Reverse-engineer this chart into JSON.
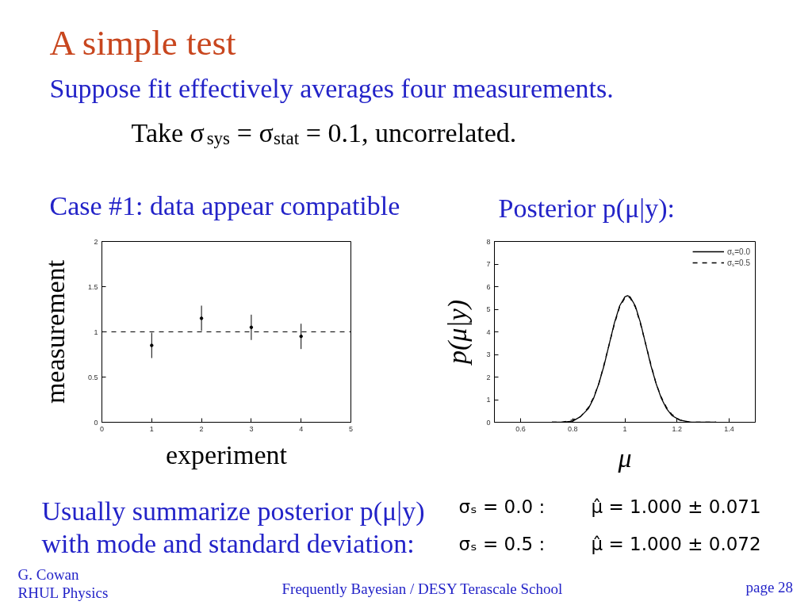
{
  "chart_data": [
    {
      "type": "other",
      "title": "A simple test",
      "subtitle": "Suppose fit effectively averages four measurements.",
      "annotations": [
        "Take σ$_{sys}$ = σ$_{stat}$ = 0.1, uncorrelated.",
        "Usually summarize posterior p(μ|y)",
        "with mode and standard deviation:",
        "σₛ = 0.0 :",
        "μ̂ = 1.000 ± 0.071",
        "σₛ = 0.5 :",
        "μ̂ = 1.000 ± 0.072",
        "G. Cowan",
        "RHUL Physics",
        "Frequently Bayesian / DESY Terascale School",
        "page 28"
      ]
    },
    {
      "type": "scatter",
      "title": "Case #1: data appear compatible",
      "xlabel": "experiment",
      "ylabel": "measurement",
      "x": [
        1,
        2,
        3,
        4
      ],
      "values": [
        0.85,
        1.15,
        1.05,
        0.95
      ],
      "errors": [
        0.14,
        0.14,
        0.14,
        0.14
      ],
      "color": "#000000",
      "marker": "circle",
      "xlim": [
        0,
        5
      ],
      "xticks": [
        0,
        1,
        2,
        3,
        4,
        5
      ],
      "ylim": [
        0,
        2
      ],
      "yticks": [
        0,
        0.5,
        1,
        1.5,
        2
      ],
      "ref_lines": [
        {
          "axis": "y",
          "value": 1,
          "color": "#000000",
          "line_style": "dashed"
        }
      ]
    },
    {
      "type": "line",
      "title": "Posterior p(μ|y):",
      "xlabel": "μ",
      "ylabel": "p(μ|y)",
      "x": [
        0.72,
        0.76,
        0.8,
        0.83,
        0.86,
        0.88,
        0.9,
        0.92,
        0.94,
        0.96,
        0.98,
        1,
        1.01,
        1.02,
        1.04,
        1.06,
        1.08,
        1.1,
        1.12,
        1.14,
        1.16,
        1.18,
        1.21,
        1.25,
        1.3,
        1.35
      ],
      "series": [
        {
          "name": "σₛ=0.0",
          "color": "#000000",
          "line_style": "solid",
          "values": [
            0,
            0,
            0.05,
            0.25,
            0.6,
            1.05,
            1.7,
            2.5,
            3.45,
            4.4,
            5.15,
            5.55,
            5.6,
            5.55,
            5.15,
            4.4,
            3.45,
            2.5,
            1.7,
            1.05,
            0.6,
            0.3,
            0.1,
            0,
            0,
            0
          ]
        },
        {
          "name": "σₛ=0.5",
          "color": "#000000",
          "line_style": "dashed",
          "values": [
            0,
            0,
            0.1,
            0.25,
            0.65,
            1.1,
            1.7,
            2.55,
            3.45,
            4.35,
            5.1,
            5.5,
            5.55,
            5.5,
            5.1,
            4.35,
            3.45,
            2.55,
            1.7,
            1.1,
            0.65,
            0.35,
            0.1,
            0,
            0,
            0
          ]
        }
      ],
      "xlim": [
        0.5,
        1.5
      ],
      "xticks": [
        0.6,
        0.8,
        1,
        1.2,
        1.4
      ],
      "ylim": [
        0,
        8
      ],
      "yticks": [
        0,
        1,
        2,
        3,
        4,
        5,
        6,
        7,
        8
      ],
      "legend": "top right"
    }
  ]
}
